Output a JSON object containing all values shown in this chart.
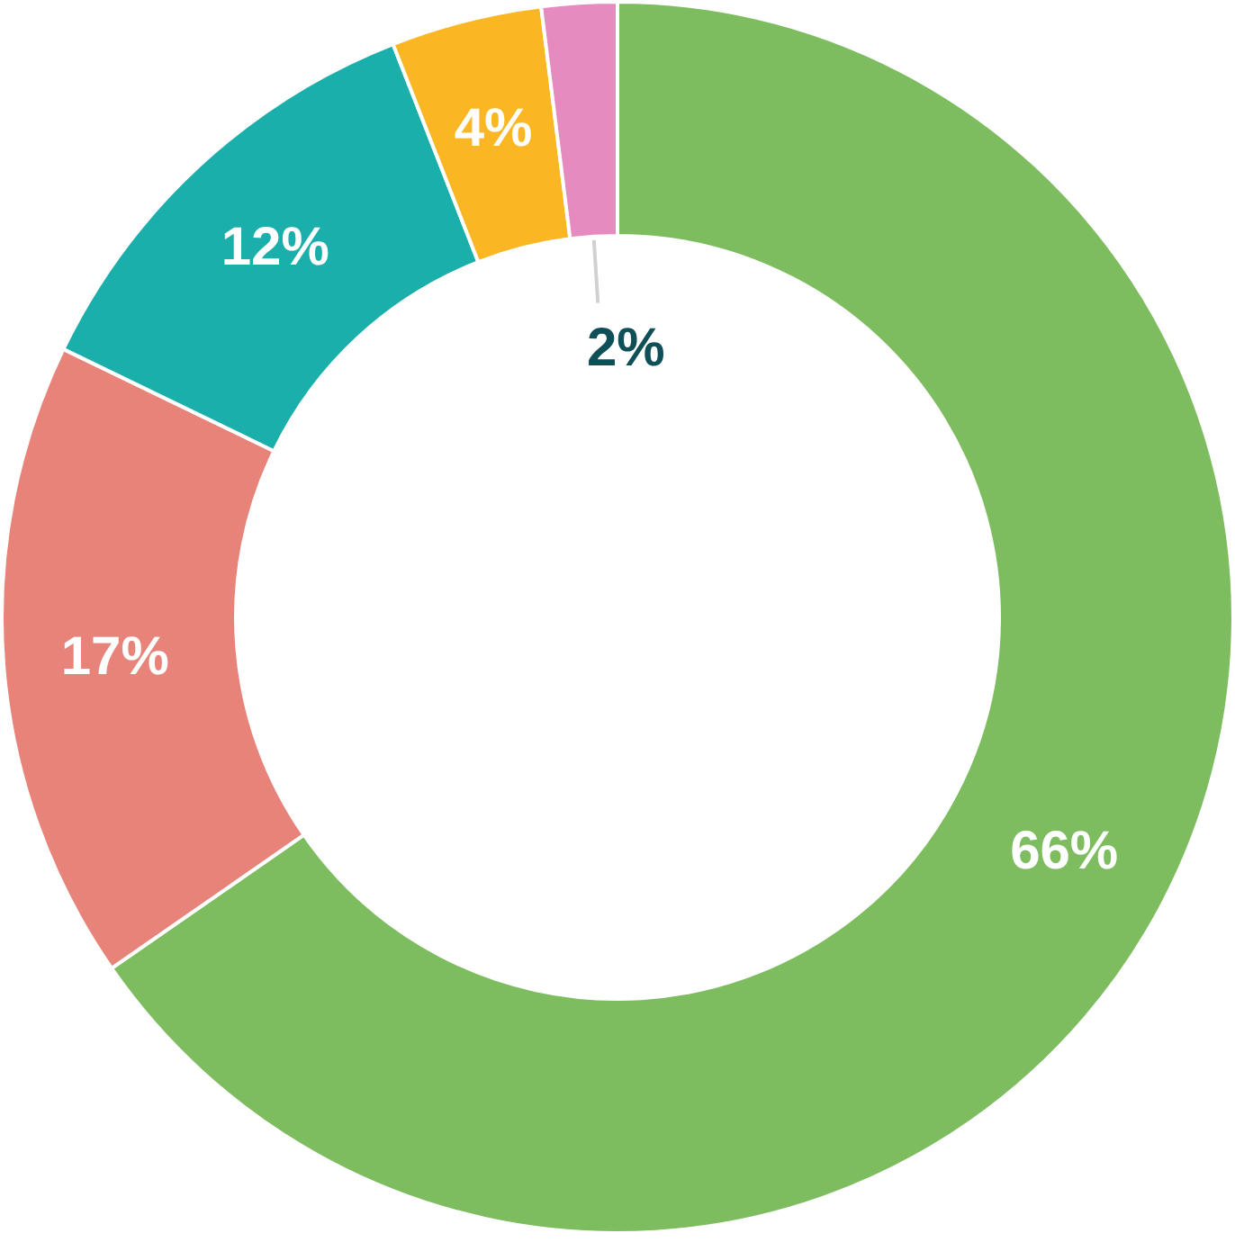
{
  "chart_data": {
    "type": "donut",
    "categories": [
      null,
      null,
      null,
      null,
      null
    ],
    "values": [
      66,
      17,
      12,
      4,
      2
    ],
    "colors": [
      "#7dbd60",
      "#e8837a",
      "#1aafaa",
      "#fbb624",
      "#e58bbf"
    ],
    "value_labels": [
      "66%",
      "17%",
      "12%",
      "4%",
      "2%"
    ]
  }
}
